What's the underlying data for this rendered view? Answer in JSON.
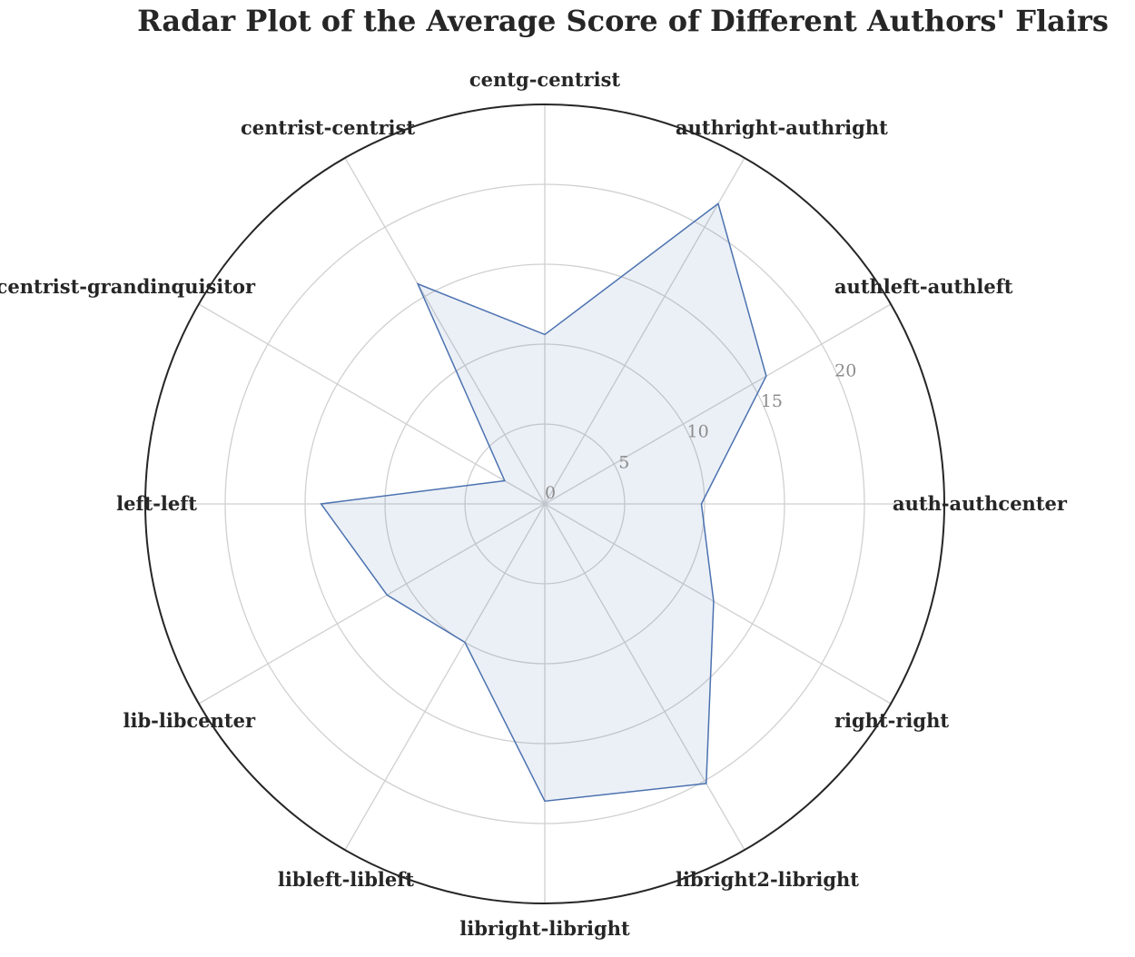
{
  "chart_data": {
    "type": "radar",
    "title": "Radar Plot of the Average Score of Different Authors' Flairs",
    "categories": [
      "auth-authcenter",
      "authleft-authleft",
      "authright-authright",
      "centg-centrist",
      "centrist-centrist",
      "centrist-grandinquisitor",
      "left-left",
      "lib-libcenter",
      "libleft-libleft",
      "libright-libright",
      "libright2-libright",
      "right-right"
    ],
    "series": [
      {
        "values": [
          9.8,
          16.0,
          21.7,
          10.6,
          15.9,
          2.9,
          14.0,
          11.4,
          10.0,
          18.6,
          20.2,
          12.2
        ]
      }
    ],
    "rlim": [
      0,
      25
    ],
    "r_ticks": [
      0,
      5,
      10,
      15,
      20
    ],
    "r_tick_labels": [
      "0",
      "5",
      "10",
      "15",
      "20"
    ],
    "grid": true,
    "colors": {
      "line": "#4c72b0",
      "fill": "#4c72b0",
      "fill_opacity": 0.11
    }
  }
}
